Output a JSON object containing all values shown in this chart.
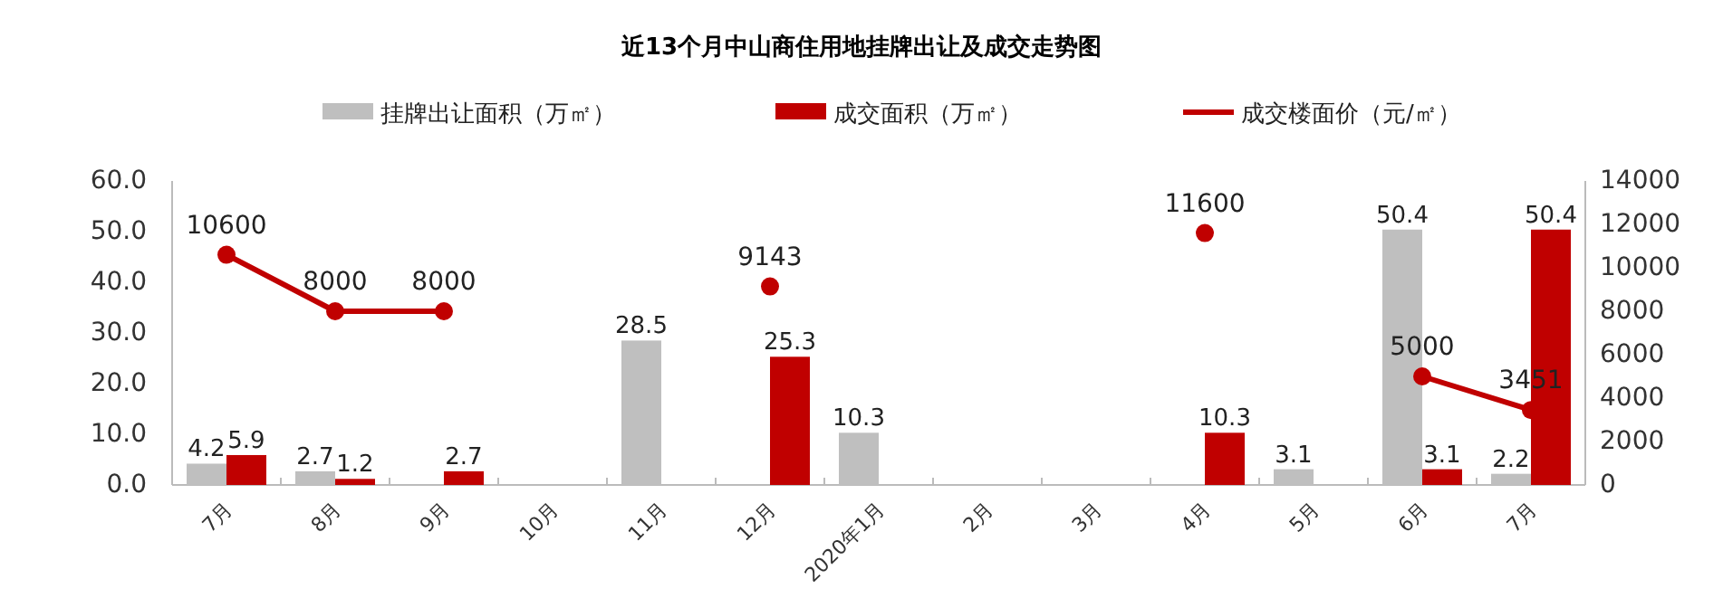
{
  "chart_data": {
    "type": "bar",
    "title": "近13个月中山商住用地挂牌出让及成交走势图",
    "categories": [
      "7月",
      "8月",
      "9月",
      "10月",
      "11月",
      "12月",
      "2020年1月",
      "2月",
      "3月",
      "4月",
      "5月",
      "6月",
      "7月"
    ],
    "series": [
      {
        "name": "挂牌出让面积（万㎡）",
        "color": "#bfbfbf",
        "values": [
          4.2,
          2.7,
          null,
          null,
          28.5,
          null,
          10.3,
          null,
          null,
          null,
          3.1,
          50.4,
          2.2
        ]
      },
      {
        "name": "成交面积（万㎡）",
        "color": "#c00000",
        "values": [
          5.9,
          1.2,
          2.7,
          null,
          null,
          25.3,
          null,
          null,
          null,
          10.3,
          null,
          3.1,
          50.4
        ]
      },
      {
        "name": "成交楼面价（元/㎡）",
        "type": "line",
        "axis": "y2",
        "marker": "circle",
        "color": "#c00000",
        "values": [
          10600,
          8000,
          8000,
          null,
          null,
          9143,
          null,
          null,
          null,
          11600,
          null,
          5000,
          3451
        ]
      }
    ],
    "ylim": [
      0,
      60
    ],
    "yticks": [
      {
        "value": 0,
        "label": "0.0"
      },
      {
        "value": 10,
        "label": "10.0"
      },
      {
        "value": 20,
        "label": "20.0"
      },
      {
        "value": 30,
        "label": "30.0"
      },
      {
        "value": 40,
        "label": "40.0"
      },
      {
        "value": 50,
        "label": "50.0"
      },
      {
        "value": 60,
        "label": "60.0"
      }
    ],
    "y2lim": [
      0,
      14000
    ],
    "y2ticks": [
      0,
      2000,
      4000,
      6000,
      8000,
      10000,
      12000,
      14000
    ],
    "data_labels": true,
    "legend": "top",
    "grid": false
  }
}
